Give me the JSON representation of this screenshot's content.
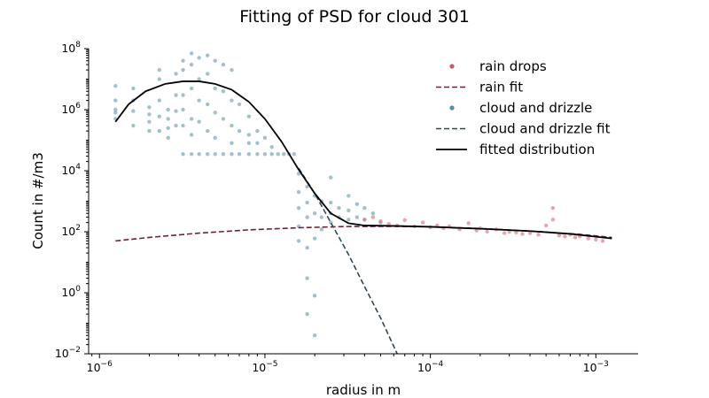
{
  "chart_data": {
    "type": "scatter",
    "title": "Fitting of PSD for cloud 301",
    "xlabel": "radius in m",
    "ylabel": "Count in #/m3",
    "xscale": "log",
    "yscale": "log",
    "xlim": [
      8.6e-07,
      0.0018
    ],
    "ylim": [
      0.01,
      100000000
    ],
    "x_ticks": [
      {
        "value": 1e-06,
        "base": "10",
        "exp": "−6"
      },
      {
        "value": 1e-05,
        "base": "10",
        "exp": "−5"
      },
      {
        "value": 0.0001,
        "base": "10",
        "exp": "−4"
      },
      {
        "value": 0.001,
        "base": "10",
        "exp": "−3"
      }
    ],
    "y_ticks": [
      {
        "value": 0.01,
        "base": "10",
        "exp": "−2"
      },
      {
        "value": 1,
        "base": "10",
        "exp": "0"
      },
      {
        "value": 100,
        "base": "10",
        "exp": "2"
      },
      {
        "value": 10000,
        "base": "10",
        "exp": "4"
      },
      {
        "value": 1000000,
        "base": "10",
        "exp": "6"
      },
      {
        "value": 100000000,
        "base": "10",
        "exp": "8"
      }
    ],
    "legend_position": "top-right",
    "colors": {
      "rain_drops": "#d9808f",
      "rain_fit": "#6b2430",
      "cloud_drizzle": "#7aa6b8",
      "cloud_drizzle_fit": "#2f4858",
      "fitted": "#000000"
    },
    "legend": [
      {
        "label": "rain drops",
        "style": "dot",
        "color": "#c45c6e"
      },
      {
        "label": "rain fit",
        "style": "dashed",
        "color": "#6b2430"
      },
      {
        "label": "cloud and drizzle",
        "style": "dot",
        "color": "#5a8aa0"
      },
      {
        "label": "cloud and drizzle fit",
        "style": "dashed",
        "color": "#2f4858"
      },
      {
        "label": "fitted distribution",
        "style": "solid",
        "color": "#000000"
      }
    ],
    "series": [
      {
        "name": "fitted distribution",
        "type": "line",
        "points": [
          [
            1.25e-06,
            400000
          ],
          [
            1.5e-06,
            1500000
          ],
          [
            1.9e-06,
            4000000
          ],
          [
            2.5e-06,
            7000000
          ],
          [
            3.2e-06,
            8500000
          ],
          [
            4e-06,
            8500000
          ],
          [
            5e-06,
            7000000
          ],
          [
            6.3e-06,
            4500000
          ],
          [
            8e-06,
            1800000
          ],
          [
            1e-05,
            500000
          ],
          [
            1.26e-05,
            90000
          ],
          [
            1.58e-05,
            12000
          ],
          [
            2e-05,
            1800
          ],
          [
            2.5e-05,
            400
          ],
          [
            3.2e-05,
            190
          ],
          [
            4e-05,
            160
          ],
          [
            6e-05,
            155
          ],
          [
            0.0001,
            145
          ],
          [
            0.0002,
            125
          ],
          [
            0.0004,
            105
          ],
          [
            0.0007,
            85
          ],
          [
            0.00125,
            60
          ]
        ]
      },
      {
        "name": "rain fit",
        "type": "dashed-line",
        "points": [
          [
            1.25e-06,
            50
          ],
          [
            2e-06,
            65
          ],
          [
            4e-06,
            90
          ],
          [
            8e-06,
            115
          ],
          [
            1.6e-05,
            135
          ],
          [
            3e-05,
            148
          ],
          [
            6e-05,
            150
          ],
          [
            0.0001,
            145
          ],
          [
            0.0002,
            128
          ],
          [
            0.0004,
            105
          ],
          [
            0.0008,
            82
          ],
          [
            0.00125,
            65
          ]
        ]
      },
      {
        "name": "cloud and drizzle fit",
        "type": "dashed-line",
        "points": [
          [
            1.6e-05,
            12000
          ],
          [
            2e-05,
            1800
          ],
          [
            2.5e-05,
            200
          ],
          [
            3.2e-05,
            18
          ],
          [
            4e-05,
            1.6
          ],
          [
            5e-05,
            0.15
          ],
          [
            6.3e-05,
            0.01
          ]
        ]
      },
      {
        "name": "cloud and drizzle",
        "type": "scatter",
        "points": [
          [
            1.25e-06,
            6000000
          ],
          [
            1.25e-06,
            2000000
          ],
          [
            1.25e-06,
            1000000
          ],
          [
            1.25e-06,
            800000
          ],
          [
            1.25e-06,
            500000
          ],
          [
            1.6e-06,
            5000000
          ],
          [
            1.6e-06,
            2000000
          ],
          [
            1.6e-06,
            900000
          ],
          [
            1.6e-06,
            300000
          ],
          [
            2e-06,
            1200000
          ],
          [
            2e-06,
            700000
          ],
          [
            2e-06,
            400000
          ],
          [
            2e-06,
            200000
          ],
          [
            2.3e-06,
            20000000
          ],
          [
            2.3e-06,
            10000000
          ],
          [
            2.3e-06,
            2000000
          ],
          [
            2.3e-06,
            600000
          ],
          [
            2.3e-06,
            200000
          ],
          [
            2.6e-06,
            1000000
          ],
          [
            2.6e-06,
            500000
          ],
          [
            2.6e-06,
            250000
          ],
          [
            2.6e-06,
            120000
          ],
          [
            2.9e-06,
            15000000
          ],
          [
            2.9e-06,
            3000000
          ],
          [
            2.9e-06,
            900000
          ],
          [
            2.9e-06,
            300000
          ],
          [
            3.2e-06,
            40000000
          ],
          [
            3.2e-06,
            20000000
          ],
          [
            3.2e-06,
            3000000
          ],
          [
            3.2e-06,
            1000000
          ],
          [
            3.2e-06,
            300000
          ],
          [
            3.2e-06,
            35000
          ],
          [
            3.6e-06,
            70000000
          ],
          [
            3.6e-06,
            30000000
          ],
          [
            3.6e-06,
            5000000
          ],
          [
            3.6e-06,
            500000
          ],
          [
            3.6e-06,
            150000
          ],
          [
            3.6e-06,
            35000
          ],
          [
            4e-06,
            50000000
          ],
          [
            4e-06,
            10000000
          ],
          [
            4e-06,
            2000000
          ],
          [
            4e-06,
            400000
          ],
          [
            4e-06,
            35000
          ],
          [
            4.5e-06,
            60000000
          ],
          [
            4.5e-06,
            15000000
          ],
          [
            4.5e-06,
            1500000
          ],
          [
            4.5e-06,
            200000
          ],
          [
            4.5e-06,
            35000
          ],
          [
            5e-06,
            40000000
          ],
          [
            5e-06,
            5000000
          ],
          [
            5e-06,
            800000
          ],
          [
            5e-06,
            120000
          ],
          [
            5e-06,
            35000
          ],
          [
            5.6e-06,
            30000000
          ],
          [
            5.6e-06,
            4000000
          ],
          [
            5.6e-06,
            500000
          ],
          [
            5.6e-06,
            35000
          ],
          [
            6.3e-06,
            20000000
          ],
          [
            6.3e-06,
            2000000
          ],
          [
            6.3e-06,
            300000
          ],
          [
            6.3e-06,
            80000
          ],
          [
            6.3e-06,
            35000
          ],
          [
            7e-06,
            1500000
          ],
          [
            7e-06,
            200000
          ],
          [
            7e-06,
            35000
          ],
          [
            8e-06,
            600000
          ],
          [
            8e-06,
            150000
          ],
          [
            8e-06,
            80000
          ],
          [
            8e-06,
            35000
          ],
          [
            9e-06,
            200000
          ],
          [
            9e-06,
            80000
          ],
          [
            9e-06,
            35000
          ],
          [
            1e-05,
            120000
          ],
          [
            1e-05,
            35000
          ],
          [
            1.1e-05,
            60000
          ],
          [
            1.1e-05,
            35000
          ],
          [
            1.2e-05,
            35000
          ],
          [
            1.3e-05,
            35000
          ],
          [
            1.4e-05,
            35000
          ],
          [
            1.5e-05,
            35000
          ],
          [
            1.6e-05,
            8000
          ],
          [
            1.6e-05,
            2000
          ],
          [
            1.6e-05,
            600
          ],
          [
            1.6e-05,
            150
          ],
          [
            1.6e-05,
            50
          ],
          [
            1.8e-05,
            3000
          ],
          [
            1.8e-05,
            900
          ],
          [
            1.8e-05,
            300
          ],
          [
            1.8e-05,
            30
          ],
          [
            1.8e-05,
            3
          ],
          [
            1.8e-05,
            0.2
          ],
          [
            2e-05,
            1500
          ],
          [
            2e-05,
            400
          ],
          [
            2e-05,
            60
          ],
          [
            2e-05,
            0.8
          ],
          [
            2e-05,
            0.04
          ],
          [
            2.2e-05,
            1000
          ],
          [
            2.2e-05,
            300
          ],
          [
            2.2e-05,
            120
          ],
          [
            2.5e-05,
            6000
          ],
          [
            2.5e-05,
            900
          ],
          [
            2.5e-05,
            400
          ],
          [
            2.5e-05,
            200
          ],
          [
            2.8e-05,
            600
          ],
          [
            2.8e-05,
            300
          ],
          [
            3.2e-05,
            1500
          ],
          [
            3.2e-05,
            500
          ],
          [
            3.2e-05,
            250
          ],
          [
            3.6e-05,
            800
          ],
          [
            3.6e-05,
            300
          ],
          [
            4e-05,
            600
          ],
          [
            4e-05,
            250
          ],
          [
            4.5e-05,
            400
          ],
          [
            5e-05,
            200
          ]
        ]
      },
      {
        "name": "rain drops",
        "type": "scatter",
        "points": [
          [
            4e-05,
            250
          ],
          [
            4.5e-05,
            300
          ],
          [
            5e-05,
            220
          ],
          [
            5.6e-05,
            180
          ],
          [
            6.3e-05,
            160
          ],
          [
            7e-05,
            240
          ],
          [
            8e-05,
            150
          ],
          [
            9e-05,
            200
          ],
          [
            0.0001,
            140
          ],
          [
            0.00011,
            160
          ],
          [
            0.00012,
            130
          ],
          [
            0.00013,
            150
          ],
          [
            0.00015,
            120
          ],
          [
            0.00017,
            190
          ],
          [
            0.00019,
            110
          ],
          [
            0.0002,
            130
          ],
          [
            0.00022,
            100
          ],
          [
            0.00025,
            120
          ],
          [
            0.00028,
            90
          ],
          [
            0.0003,
            100
          ],
          [
            0.00033,
            95
          ],
          [
            0.00036,
            85
          ],
          [
            0.0004,
            90
          ],
          [
            0.00045,
            80
          ],
          [
            0.0005,
            160
          ],
          [
            0.00055,
            600
          ],
          [
            0.00055,
            250
          ],
          [
            0.0006,
            75
          ],
          [
            0.00065,
            70
          ],
          [
            0.0007,
            80
          ],
          [
            0.00075,
            65
          ],
          [
            0.0008,
            70
          ],
          [
            0.0009,
            60
          ],
          [
            0.001,
            55
          ],
          [
            0.0011,
            50
          ]
        ]
      }
    ]
  }
}
